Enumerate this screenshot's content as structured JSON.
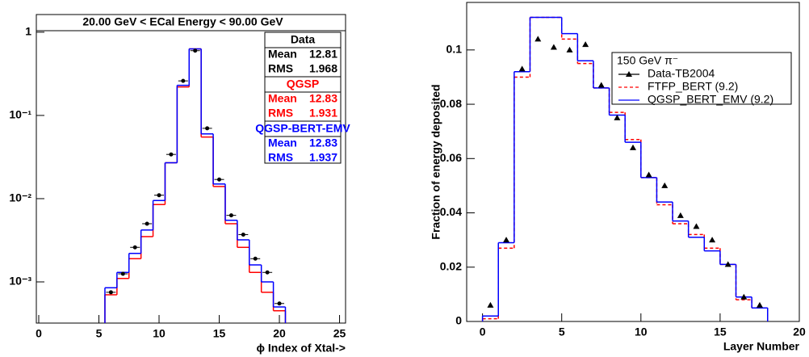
{
  "chart_data": [
    {
      "type": "histogram",
      "title": "20.00 GeV < ECal Energy < 90.00 GeV",
      "x_label": "ϕ Index of Xtal->",
      "log_y": true,
      "bins": [
        5.5,
        6.5,
        7.5,
        8.5,
        9.5,
        10.5,
        11.5,
        12.5,
        13.5,
        14.5,
        15.5,
        16.5,
        17.5,
        18.5,
        19.5,
        20.5
      ],
      "stat_labels": [
        "Mean",
        "RMS"
      ],
      "series": [
        {
          "name": "Data",
          "color": "#000000",
          "marker": "circle",
          "mean": 12.81,
          "rms": 1.968,
          "values": [
            0.00075,
            0.00125,
            0.0026,
            0.005,
            0.011,
            0.034,
            0.26,
            0.6,
            0.07,
            0.017,
            0.0063,
            0.0037,
            0.0019,
            0.0013,
            0.00055
          ]
        },
        {
          "name": "QGSP",
          "color": "#ff0000",
          "mean": 12.83,
          "rms": 1.931,
          "values": [
            0.0007,
            0.0011,
            0.0019,
            0.0035,
            0.0085,
            0.027,
            0.22,
            0.63,
            0.055,
            0.014,
            0.005,
            0.0026,
            0.0013,
            0.00075,
            0.00045
          ]
        },
        {
          "name": "QGSP-BERT-EMV",
          "color": "#0000ff",
          "mean": 12.83,
          "rms": 1.937,
          "values": [
            0.00085,
            0.0013,
            0.0022,
            0.0042,
            0.0095,
            0.027,
            0.23,
            0.63,
            0.06,
            0.015,
            0.0055,
            0.0032,
            0.0016,
            0.001,
            0.0005
          ]
        }
      ],
      "xlim": [
        -0.2,
        25.5
      ],
      "xticks": [
        0,
        5,
        10,
        15,
        20,
        25
      ],
      "ylim": [
        0.00032,
        1.63
      ],
      "yticks": [
        {
          "value": 0.001,
          "label": "10⁻³"
        },
        {
          "value": 0.01,
          "label": "10⁻²"
        },
        {
          "value": 0.1,
          "label": "10⁻¹"
        },
        1
      ]
    },
    {
      "type": "histogram",
      "x_label": "Layer Number",
      "y_label": "Fraction of energy deposited",
      "log_y": false,
      "legend_title": "150 GeV π⁻",
      "bins": [
        0,
        1,
        2,
        3,
        4,
        5,
        6,
        7,
        8,
        9,
        10,
        11,
        12,
        13,
        14,
        15,
        16,
        17,
        18
      ],
      "series": [
        {
          "name": "Data-TB2004",
          "color": "#000000",
          "marker": "triangle",
          "values": [
            0.006,
            0.03,
            0.093,
            0.104,
            0.101,
            0.1,
            0.102,
            0.087,
            0.075,
            0.064,
            0.054,
            0.05,
            0.039,
            0.035,
            0.03,
            0.021,
            0.009,
            0.006
          ]
        },
        {
          "name": "FTFP_BERT (9.2)",
          "color": "#ff0000",
          "dash": true,
          "values": [
            0.001,
            0.027,
            0.09,
            0.112,
            0.112,
            0.104,
            0.095,
            0.086,
            0.077,
            0.067,
            0.053,
            0.043,
            0.036,
            0.032,
            0.027,
            0.021,
            0.008,
            0.005
          ]
        },
        {
          "name": "QGSP_BERT_EMV (9.2)",
          "color": "#0000ff",
          "values": [
            0.002,
            0.029,
            0.092,
            0.112,
            0.112,
            0.106,
            0.096,
            0.086,
            0.076,
            0.066,
            0.053,
            0.044,
            0.037,
            0.031,
            0.026,
            0.021,
            0.009,
            0.005
          ]
        }
      ],
      "xlim": [
        -1,
        20
      ],
      "xticks": [
        0,
        5,
        10,
        15,
        20
      ],
      "ylim": [
        0,
        0.1175
      ],
      "yticks": [
        0,
        0.02,
        0.04,
        0.06,
        0.08,
        0.1
      ]
    }
  ]
}
